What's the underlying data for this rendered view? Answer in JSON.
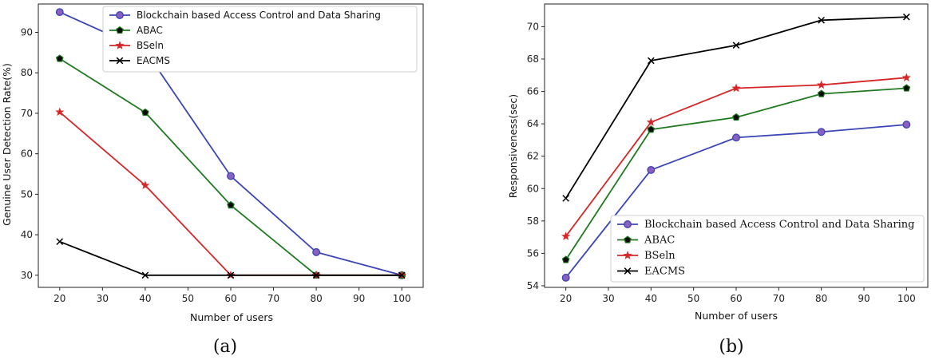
{
  "chart_data": [
    {
      "type": "line",
      "panel_label": "(a)",
      "xlabel": "Number of users",
      "ylabel": "Genuine User Detection Rate(%)",
      "x": [
        20,
        40,
        60,
        80,
        100
      ],
      "xlim": [
        15,
        105
      ],
      "ylim": [
        27,
        97
      ],
      "xticks": [
        20,
        30,
        40,
        50,
        60,
        70,
        80,
        90,
        100
      ],
      "yticks": [
        30,
        40,
        50,
        60,
        70,
        80,
        90
      ],
      "legend_position": "top-right",
      "series": [
        {
          "name": "Blockchain based Access Control and Data Sharing",
          "color": "#3b45b5",
          "marker": "circle",
          "values": [
            95,
            85.5,
            54.5,
            35.7,
            30
          ]
        },
        {
          "name": "ABAC",
          "color": "#1f7a1f",
          "marker": "pentagon",
          "values": [
            83.5,
            70.2,
            47.3,
            30,
            30
          ]
        },
        {
          "name": "BSeln",
          "color": "#d62728",
          "marker": "star",
          "values": [
            70.3,
            52.2,
            30,
            30,
            30
          ]
        },
        {
          "name": "EACMS",
          "color": "#000000",
          "marker": "x",
          "values": [
            38.3,
            30,
            30,
            30,
            30
          ]
        }
      ]
    },
    {
      "type": "line",
      "panel_label": "(b)",
      "xlabel": "Number of users",
      "ylabel": "Responsiveness(sec)",
      "x": [
        20,
        40,
        60,
        80,
        100
      ],
      "xlim": [
        15,
        105
      ],
      "ylim": [
        53.9,
        71.4
      ],
      "xticks": [
        20,
        30,
        40,
        50,
        60,
        70,
        80,
        90,
        100
      ],
      "yticks": [
        54,
        56,
        58,
        60,
        62,
        64,
        66,
        68,
        70
      ],
      "legend_position": "lower-right",
      "series": [
        {
          "name": "Blockchain based Access Control and Data Sharing",
          "color": "#3b45b5",
          "marker": "circle",
          "values": [
            54.5,
            61.15,
            63.15,
            63.5,
            63.95
          ]
        },
        {
          "name": "ABAC",
          "color": "#1f7a1f",
          "marker": "pentagon",
          "values": [
            55.6,
            63.65,
            64.4,
            65.85,
            66.2
          ]
        },
        {
          "name": "BSeln",
          "color": "#d62728",
          "marker": "star",
          "values": [
            57.05,
            64.1,
            66.2,
            66.4,
            66.85
          ]
        },
        {
          "name": "EACMS",
          "color": "#000000",
          "marker": "x",
          "values": [
            59.4,
            67.9,
            68.85,
            70.4,
            70.6
          ]
        }
      ]
    }
  ]
}
